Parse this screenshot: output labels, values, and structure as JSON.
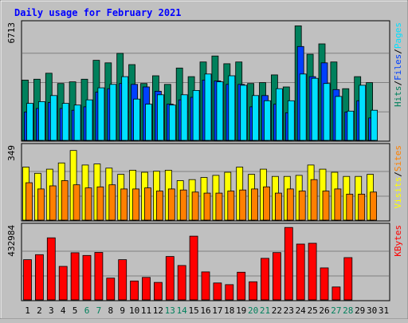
{
  "title": "Daily usage for February 2021",
  "colors": {
    "background": "#c0c0c0",
    "plot_bg": "#c0c0c0",
    "title": "#0000ff",
    "hits": "#00805c",
    "files": "#0040ff",
    "pages": "#00e0ff",
    "visits": "#ffff00",
    "sites": "#ff8000",
    "kbytes": "#ff0000",
    "weekend_label": "#00805c",
    "weekday_label": "#000000"
  },
  "chart_data": [
    {
      "type": "bar",
      "title": "Daily usage for February 2021",
      "panel": "hits-files-pages",
      "ymax_label": "6713",
      "ylim": [
        0,
        6713
      ],
      "right_label": [
        {
          "text": "Hits",
          "color": "#00805c"
        },
        {
          "text": "/",
          "color": "#000000"
        },
        {
          "text": "Files",
          "color": "#0040ff"
        },
        {
          "text": "/",
          "color": "#000000"
        },
        {
          "text": "Pages",
          "color": "#00e0ff"
        }
      ],
      "categories": [
        "1",
        "2",
        "3",
        "4",
        "5",
        "6",
        "7",
        "8",
        "9",
        "10",
        "11",
        "12",
        "13",
        "14",
        "15",
        "16",
        "17",
        "18",
        "19",
        "20",
        "21",
        "22",
        "23",
        "24",
        "25",
        "26",
        "27",
        "28",
        "29",
        "30",
        "31"
      ],
      "series": [
        {
          "name": "Hits",
          "color": "#00805c",
          "values": [
            3500,
            3550,
            3900,
            3300,
            3400,
            3550,
            4650,
            4500,
            5050,
            4400,
            3300,
            3750,
            3250,
            4200,
            3700,
            4550,
            4900,
            4450,
            4550,
            3300,
            3350,
            3800,
            3100,
            6650,
            5000,
            5600,
            4550,
            3000,
            3700,
            3350,
            null
          ]
        },
        {
          "name": "Files",
          "color": "#0040ff",
          "values": [
            1650,
            1850,
            2200,
            1850,
            1750,
            1950,
            2800,
            3000,
            3300,
            3250,
            3100,
            2850,
            2100,
            2350,
            2500,
            3500,
            3450,
            3250,
            3250,
            1950,
            2600,
            2100,
            1600,
            5450,
            3700,
            4500,
            2950,
            1650,
            2300,
            1300,
            null
          ]
        },
        {
          "name": "Pages",
          "color": "#00e0ff",
          "values": [
            2150,
            2250,
            2600,
            2150,
            2050,
            2350,
            3050,
            3250,
            3700,
            2400,
            2100,
            2650,
            2050,
            2650,
            2900,
            3850,
            3400,
            3750,
            3200,
            2600,
            2300,
            3000,
            2300,
            3850,
            3600,
            3300,
            2550,
            1700,
            3200,
            1750,
            null
          ]
        }
      ]
    },
    {
      "type": "bar",
      "panel": "visits-sites",
      "ymax_label": "349",
      "ylim": [
        0,
        349
      ],
      "right_label": [
        {
          "text": "Visits",
          "color": "#ffff00"
        },
        {
          "text": "/",
          "color": "#000000"
        },
        {
          "text": "Sites",
          "color": "#ff8000"
        }
      ],
      "categories": [
        "1",
        "2",
        "3",
        "4",
        "5",
        "6",
        "7",
        "8",
        "9",
        "10",
        "11",
        "12",
        "13",
        "14",
        "15",
        "16",
        "17",
        "18",
        "19",
        "20",
        "21",
        "22",
        "23",
        "24",
        "25",
        "26",
        "27",
        "28",
        "29",
        "30",
        "31"
      ],
      "series": [
        {
          "name": "Visits",
          "color": "#ffff00",
          "values": [
            255,
            225,
            245,
            275,
            335,
            265,
            270,
            250,
            220,
            240,
            230,
            235,
            240,
            190,
            195,
            205,
            215,
            230,
            255,
            220,
            245,
            210,
            210,
            215,
            265,
            245,
            230,
            210,
            210,
            220,
            null
          ]
        },
        {
          "name": "Sites",
          "color": "#ff8000",
          "values": [
            180,
            150,
            165,
            190,
            170,
            155,
            160,
            170,
            150,
            150,
            155,
            140,
            150,
            145,
            135,
            130,
            130,
            140,
            145,
            150,
            160,
            130,
            150,
            140,
            195,
            140,
            150,
            125,
            125,
            135,
            null
          ]
        }
      ]
    },
    {
      "type": "bar",
      "panel": "kbytes",
      "ymax_label": "432984",
      "ylim": [
        0,
        432984
      ],
      "right_label": [
        {
          "text": "KBytes",
          "color": "#ff0000"
        }
      ],
      "categories": [
        "1",
        "2",
        "3",
        "4",
        "5",
        "6",
        "7",
        "8",
        "9",
        "10",
        "11",
        "12",
        "13",
        "14",
        "15",
        "16",
        "17",
        "18",
        "19",
        "20",
        "21",
        "22",
        "23",
        "24",
        "25",
        "26",
        "27",
        "28",
        "29",
        "30",
        "31"
      ],
      "series": [
        {
          "name": "KBytes",
          "color": "#ff0000",
          "values": [
            240000,
            270000,
            370000,
            200000,
            281000,
            265000,
            283000,
            130000,
            240000,
            113000,
            134000,
            104000,
            259000,
            205000,
            380000,
            167000,
            101000,
            91000,
            165000,
            108000,
            248000,
            282000,
            432000,
            333000,
            338000,
            191000,
            77000,
            252000,
            null,
            null,
            null
          ]
        }
      ]
    }
  ],
  "x_axis": {
    "labels": [
      "1",
      "2",
      "3",
      "4",
      "5",
      "6",
      "7",
      "8",
      "9",
      "10",
      "11",
      "12",
      "13",
      "14",
      "15",
      "16",
      "17",
      "18",
      "19",
      "20",
      "21",
      "22",
      "23",
      "24",
      "25",
      "26",
      "27",
      "28",
      "29",
      "30",
      "31"
    ],
    "weekend_days": [
      "6",
      "7",
      "13",
      "14",
      "20",
      "21",
      "27",
      "28"
    ]
  }
}
